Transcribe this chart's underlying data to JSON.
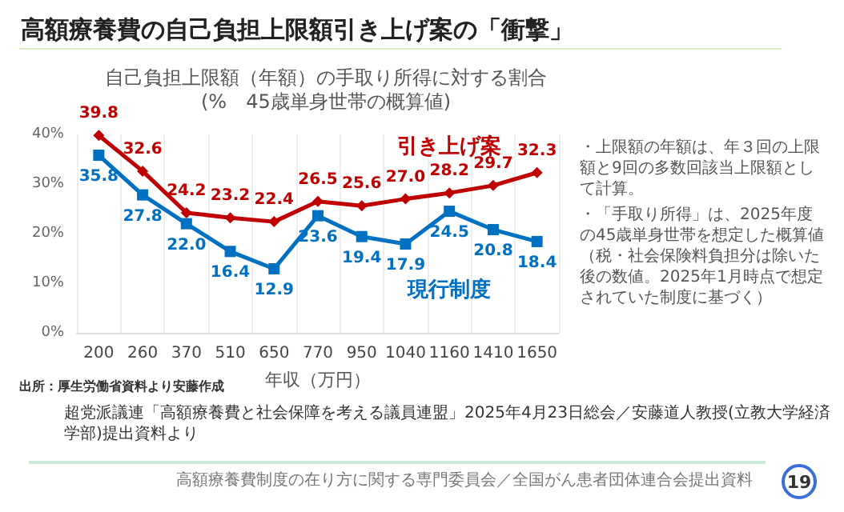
{
  "chart_data": {
    "type": "line",
    "title": "高額療養費の自己負担上限額引き上げ案の「衝撃」",
    "subtitle": "自己負担上限額（年額）の手取り所得に対する割合\n(%　45歳単身世帯の概算値)",
    "xlabel": "年収（万円）",
    "categories": [
      "200",
      "260",
      "370",
      "510",
      "650",
      "770",
      "950",
      "1040",
      "1160",
      "1410",
      "1650"
    ],
    "series": [
      {
        "name": "引き上げ案",
        "color": "#c00000",
        "marker": "diamond",
        "values": [
          39.8,
          32.6,
          24.2,
          23.2,
          22.4,
          26.5,
          25.6,
          27.0,
          28.2,
          29.7,
          32.3
        ],
        "value_labels": [
          "39.8",
          "32.6",
          "24.2",
          "23.2",
          "22.4",
          "26.5",
          "25.6",
          "27.0",
          "28.2",
          "29.7",
          "32.3"
        ]
      },
      {
        "name": "現行制度",
        "color": "#0070c0",
        "marker": "square",
        "values": [
          35.8,
          27.8,
          22.0,
          16.4,
          12.9,
          23.6,
          19.4,
          17.9,
          24.5,
          20.8,
          18.4
        ],
        "value_labels": [
          "35.8",
          "27.8",
          "22.0",
          "16.4",
          "12.9",
          "23.6",
          "19.4",
          "17.9",
          "24.5",
          "20.8",
          "18.4"
        ]
      }
    ],
    "ylim": [
      0,
      40
    ],
    "yticks": [
      {
        "value": 0,
        "label": "0%"
      },
      {
        "value": 10,
        "label": "10%"
      },
      {
        "value": 20,
        "label": "20%"
      },
      {
        "value": 30,
        "label": "30%"
      },
      {
        "value": 40,
        "label": "40%"
      }
    ],
    "grid": "x",
    "legend": false,
    "annotations": [
      "・上限額の年額は、年３回の上限額と9回の多数回該当上限額として計算。",
      "・「手取り所得」は、2025年度の45歳単身世帯を想定した概算値（税・社会保険料負担分は除いた後の数値。2025年1月時点で想定されていた制度に基づく）",
      "出所：厚生労働省資料より安藤作成",
      "超党派議連「高額療養費と社会保障を考える議員連盟」2025年4月23日総会／安藤道人教授(立教大学経済学部)提出資料より",
      "高額療養費制度の在り方に関する専門委員会／全国がん患者団体連合会提出資料",
      "19"
    ]
  }
}
